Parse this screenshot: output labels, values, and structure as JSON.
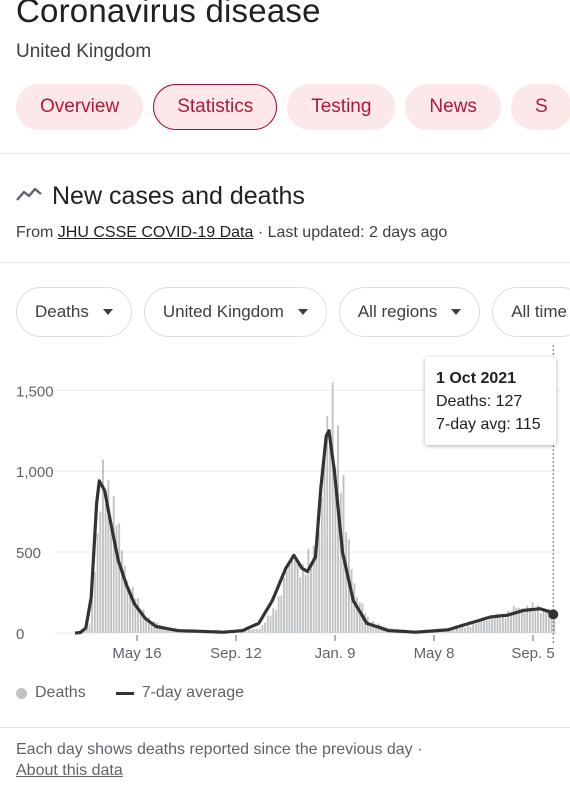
{
  "header": {
    "title": "Coronavirus disease",
    "subtitle": "United Kingdom"
  },
  "tabs": [
    {
      "label": "Overview",
      "active": false
    },
    {
      "label": "Statistics",
      "active": true
    },
    {
      "label": "Testing",
      "active": false
    },
    {
      "label": "News",
      "active": false
    },
    {
      "label": "S",
      "active": false
    }
  ],
  "section": {
    "title": "New cases and deaths",
    "source_prefix": "From ",
    "source_link": "JHU CSSE COVID-19 Data",
    "updated": " · Last updated: 2 days ago"
  },
  "filters": {
    "metric": "Deaths",
    "region": "United Kingdom",
    "subregion": "All regions",
    "time": "All time"
  },
  "tooltip": {
    "date": "1 Oct 2021",
    "deaths": "Deaths: 127",
    "avg": "7-day avg: 115"
  },
  "legend": {
    "deaths": "Deaths",
    "avg": "7-day average"
  },
  "footnote": "Each day shows deaths reported since the previous day  ·",
  "about_link": "About this data",
  "colors": {
    "brand_red": "#b3173a",
    "tab_bg": "#fce8e9",
    "bar": "#c0c3c5",
    "line": "#333333"
  },
  "chart_data": {
    "type": "bar",
    "x_ticks": [
      "May 16",
      "Sep. 12",
      "Jan. 9",
      "May 8",
      "Sep. 5"
    ],
    "y_ticks": [
      "0",
      "500",
      "1,000",
      "1,500"
    ],
    "ylim": [
      0,
      1700
    ],
    "series": [
      {
        "name": "Deaths",
        "kind": "bar",
        "keypoints": [
          [
            0,
            0
          ],
          [
            2,
            5
          ],
          [
            5,
            60
          ],
          [
            8,
            600
          ],
          [
            10,
            1050
          ],
          [
            11,
            1100
          ],
          [
            13,
            950
          ],
          [
            16,
            650
          ],
          [
            19,
            380
          ],
          [
            23,
            200
          ],
          [
            28,
            80
          ],
          [
            34,
            30
          ],
          [
            46,
            10
          ],
          [
            60,
            10
          ],
          [
            68,
            30
          ],
          [
            73,
            150
          ],
          [
            78,
            400
          ],
          [
            81,
            550
          ],
          [
            84,
            420
          ],
          [
            87,
            520
          ],
          [
            90,
            700
          ],
          [
            93,
            1300
          ],
          [
            95,
            1650
          ],
          [
            97,
            1350
          ],
          [
            100,
            700
          ],
          [
            104,
            250
          ],
          [
            108,
            100
          ],
          [
            114,
            40
          ],
          [
            126,
            10
          ],
          [
            142,
            30
          ],
          [
            150,
            80
          ],
          [
            157,
            120
          ],
          [
            162,
            160
          ],
          [
            167,
            180
          ],
          [
            172,
            170
          ],
          [
            177,
            140
          ]
        ]
      },
      {
        "name": "7-day average",
        "kind": "line",
        "keypoints": [
          [
            0,
            0
          ],
          [
            2,
            3
          ],
          [
            4,
            30
          ],
          [
            6,
            220
          ],
          [
            8,
            800
          ],
          [
            9,
            940
          ],
          [
            11,
            880
          ],
          [
            13,
            700
          ],
          [
            16,
            450
          ],
          [
            19,
            300
          ],
          [
            22,
            180
          ],
          [
            26,
            90
          ],
          [
            30,
            40
          ],
          [
            38,
            15
          ],
          [
            55,
            5
          ],
          [
            62,
            15
          ],
          [
            68,
            60
          ],
          [
            73,
            200
          ],
          [
            78,
            400
          ],
          [
            81,
            480
          ],
          [
            84,
            400
          ],
          [
            86,
            380
          ],
          [
            89,
            470
          ],
          [
            91,
            900
          ],
          [
            93,
            1220
          ],
          [
            94,
            1250
          ],
          [
            96,
            1000
          ],
          [
            99,
            500
          ],
          [
            103,
            200
          ],
          [
            108,
            60
          ],
          [
            116,
            15
          ],
          [
            126,
            5
          ],
          [
            138,
            20
          ],
          [
            146,
            60
          ],
          [
            154,
            100
          ],
          [
            160,
            110
          ],
          [
            166,
            140
          ],
          [
            172,
            150
          ],
          [
            176,
            130
          ],
          [
            177,
            115
          ]
        ]
      }
    ],
    "grid": true
  }
}
